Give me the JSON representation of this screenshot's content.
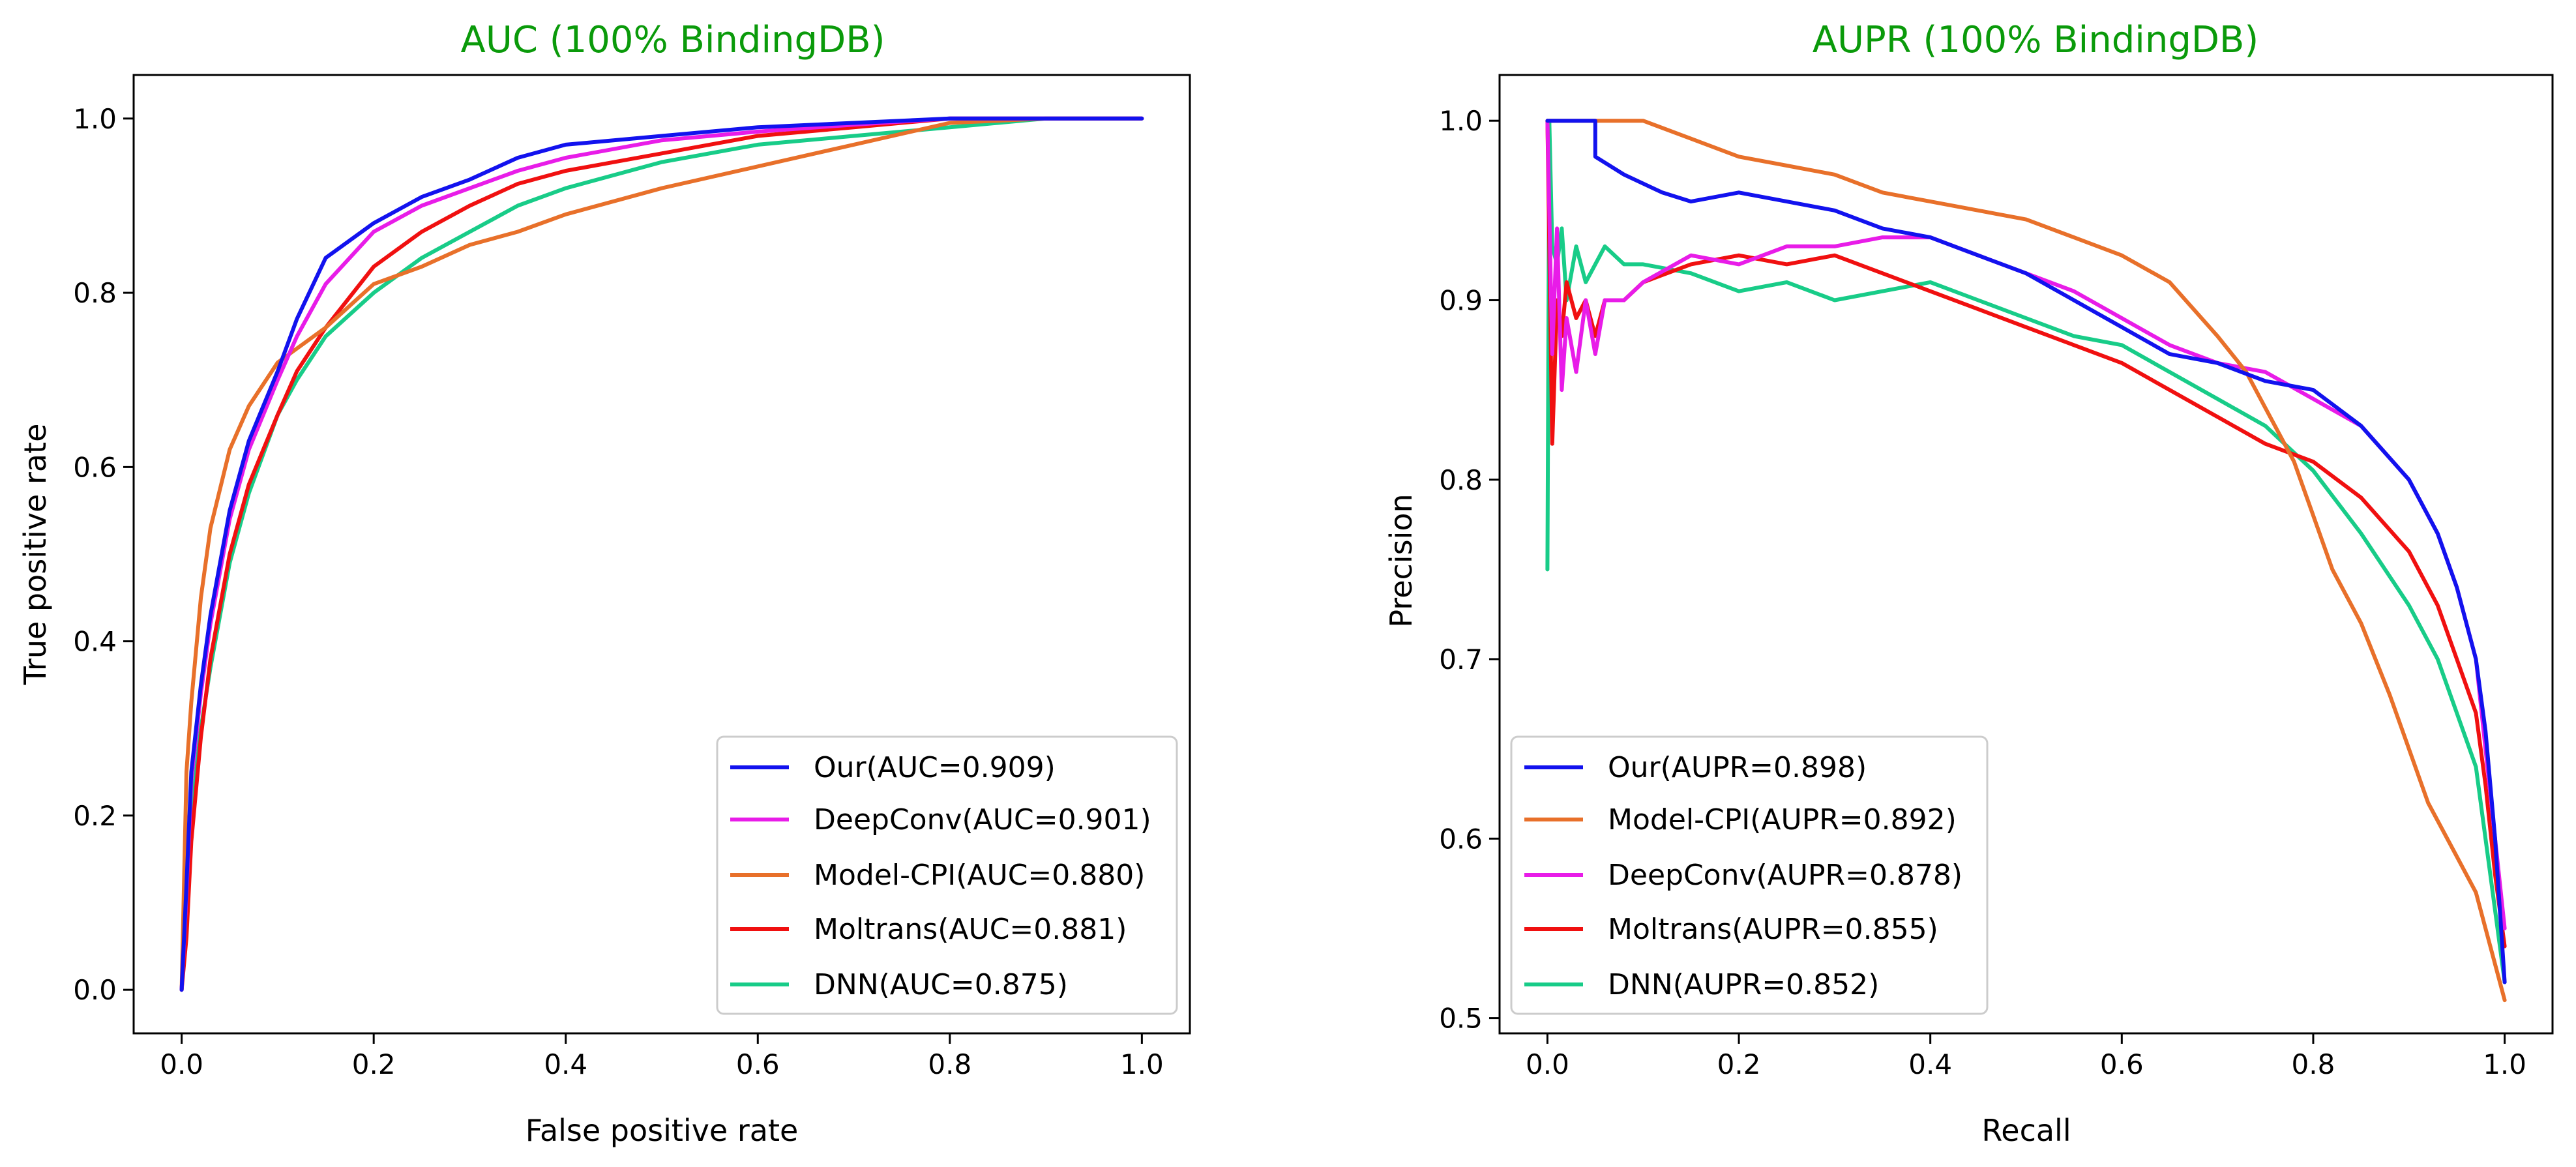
{
  "colors": {
    "title": "#0a9a0a",
    "blue": "#1212ee",
    "magenta": "#e81ce8",
    "orange": "#e8702a",
    "red": "#f01010",
    "green": "#18cc88"
  },
  "chart_data": [
    {
      "type": "line",
      "title": "AUC (100% BindingDB)",
      "xlabel": "False positive rate",
      "ylabel": "True positive rate",
      "xlim": [
        -0.05,
        1.05
      ],
      "ylim": [
        -0.05,
        1.05
      ],
      "xticks": [
        0.0,
        0.2,
        0.4,
        0.6,
        0.8,
        1.0
      ],
      "yticks": [
        0.0,
        0.2,
        0.4,
        0.6,
        0.8,
        1.0
      ],
      "xtick_labels": [
        "0.0",
        "0.2",
        "0.4",
        "0.6",
        "0.8",
        "1.0"
      ],
      "ytick_labels": [
        "0.0",
        "0.2",
        "0.4",
        "0.6",
        "0.8",
        "1.0"
      ],
      "legend_position": "lower-right",
      "series": [
        {
          "name": "Our(AUC=0.909)",
          "color": "blue",
          "x": [
            0,
            0.005,
            0.01,
            0.02,
            0.03,
            0.05,
            0.07,
            0.1,
            0.12,
            0.15,
            0.2,
            0.25,
            0.3,
            0.35,
            0.4,
            0.5,
            0.6,
            0.7,
            0.8,
            0.9,
            1.0
          ],
          "y": [
            0,
            0.12,
            0.25,
            0.35,
            0.43,
            0.55,
            0.63,
            0.71,
            0.77,
            0.84,
            0.88,
            0.91,
            0.93,
            0.955,
            0.97,
            0.98,
            0.99,
            0.995,
            1.0,
            1.0,
            1.0
          ]
        },
        {
          "name": "DeepConv(AUC=0.901)",
          "color": "magenta",
          "x": [
            0,
            0.005,
            0.01,
            0.02,
            0.03,
            0.05,
            0.07,
            0.1,
            0.12,
            0.15,
            0.2,
            0.25,
            0.3,
            0.35,
            0.4,
            0.5,
            0.6,
            0.7,
            0.8,
            0.9,
            1.0
          ],
          "y": [
            0,
            0.11,
            0.24,
            0.34,
            0.42,
            0.54,
            0.62,
            0.7,
            0.75,
            0.81,
            0.87,
            0.9,
            0.92,
            0.94,
            0.955,
            0.975,
            0.985,
            0.993,
            1.0,
            1.0,
            1.0
          ]
        },
        {
          "name": "Model-CPI(AUC=0.880)",
          "color": "orange",
          "x": [
            0,
            0.005,
            0.01,
            0.02,
            0.03,
            0.05,
            0.07,
            0.1,
            0.15,
            0.2,
            0.25,
            0.3,
            0.35,
            0.4,
            0.5,
            0.6,
            0.7,
            0.8,
            0.9,
            1.0
          ],
          "y": [
            0,
            0.25,
            0.33,
            0.45,
            0.53,
            0.62,
            0.67,
            0.72,
            0.76,
            0.81,
            0.83,
            0.855,
            0.87,
            0.89,
            0.92,
            0.945,
            0.97,
            0.995,
            1.0,
            1.0
          ]
        },
        {
          "name": "Moltrans(AUC=0.881)",
          "color": "red",
          "x": [
            0,
            0.005,
            0.01,
            0.02,
            0.03,
            0.05,
            0.07,
            0.1,
            0.12,
            0.15,
            0.2,
            0.25,
            0.3,
            0.35,
            0.4,
            0.5,
            0.6,
            0.7,
            0.8,
            0.9,
            1.0
          ],
          "y": [
            0,
            0.06,
            0.17,
            0.29,
            0.38,
            0.5,
            0.58,
            0.66,
            0.71,
            0.76,
            0.83,
            0.87,
            0.9,
            0.925,
            0.94,
            0.96,
            0.98,
            0.99,
            1.0,
            1.0,
            1.0
          ]
        },
        {
          "name": "DNN(AUC=0.875)",
          "color": "green",
          "x": [
            0,
            0.005,
            0.01,
            0.02,
            0.03,
            0.05,
            0.07,
            0.1,
            0.12,
            0.15,
            0.2,
            0.25,
            0.3,
            0.35,
            0.4,
            0.5,
            0.6,
            0.7,
            0.8,
            0.9,
            1.0
          ],
          "y": [
            0,
            0.1,
            0.2,
            0.3,
            0.37,
            0.49,
            0.57,
            0.66,
            0.7,
            0.75,
            0.8,
            0.84,
            0.87,
            0.9,
            0.92,
            0.95,
            0.97,
            0.98,
            0.99,
            1.0,
            1.0
          ]
        }
      ],
      "legend": [
        "Our(AUC=0.909)",
        "DeepConv(AUC=0.901)",
        "Model-CPI(AUC=0.880)",
        "Moltrans(AUC=0.881)",
        "DNN(AUC=0.875)"
      ]
    },
    {
      "type": "line",
      "title": "AUPR (100% BindingDB)",
      "xlabel": "Recall",
      "ylabel": "Precision",
      "xlim": [
        -0.05,
        1.05
      ],
      "ylim": [
        0.4915,
        1.0255
      ],
      "xticks": [
        0.0,
        0.2,
        0.4,
        0.6,
        0.8,
        1.0
      ],
      "yticks": [
        0.5,
        0.6,
        0.7,
        0.8,
        0.9,
        1.0
      ],
      "xtick_labels": [
        "0.0",
        "0.2",
        "0.4",
        "0.6",
        "0.8",
        "1.0"
      ],
      "ytick_labels": [
        "0.5",
        "0.6",
        "0.7",
        "0.8",
        "0.9",
        "1.0"
      ],
      "legend_position": "lower-left",
      "series": [
        {
          "name": "Our(AUPR=0.898)",
          "color": "blue",
          "x": [
            0.0,
            0.0,
            0.05,
            0.05,
            0.08,
            0.12,
            0.15,
            0.2,
            0.25,
            0.3,
            0.35,
            0.4,
            0.45,
            0.5,
            0.55,
            0.6,
            0.65,
            0.7,
            0.75,
            0.8,
            0.85,
            0.9,
            0.93,
            0.95,
            0.97,
            0.98,
            0.99,
            0.995,
            1.0
          ],
          "y": [
            1.0,
            1.0,
            1.0,
            0.98,
            0.97,
            0.96,
            0.955,
            0.96,
            0.955,
            0.95,
            0.94,
            0.935,
            0.925,
            0.915,
            0.9,
            0.885,
            0.87,
            0.865,
            0.855,
            0.85,
            0.83,
            0.8,
            0.77,
            0.74,
            0.7,
            0.66,
            0.6,
            0.56,
            0.52
          ]
        },
        {
          "name": "Model-CPI(AUPR=0.892)",
          "color": "orange",
          "x": [
            0.0,
            0.0,
            0.05,
            0.1,
            0.15,
            0.2,
            0.25,
            0.3,
            0.35,
            0.4,
            0.45,
            0.5,
            0.55,
            0.6,
            0.65,
            0.7,
            0.73,
            0.75,
            0.78,
            0.8,
            0.82,
            0.85,
            0.88,
            0.9,
            0.92,
            0.95,
            0.97,
            0.98,
            0.99,
            1.0
          ],
          "y": [
            1.0,
            1.0,
            1.0,
            1.0,
            0.99,
            0.98,
            0.975,
            0.97,
            0.96,
            0.955,
            0.95,
            0.945,
            0.935,
            0.925,
            0.91,
            0.88,
            0.86,
            0.84,
            0.81,
            0.78,
            0.75,
            0.72,
            0.68,
            0.65,
            0.62,
            0.59,
            0.57,
            0.55,
            0.53,
            0.51
          ]
        },
        {
          "name": "DeepConv(AUPR=0.878)",
          "color": "magenta",
          "x": [
            0.0,
            0.005,
            0.01,
            0.015,
            0.02,
            0.03,
            0.04,
            0.05,
            0.06,
            0.08,
            0.1,
            0.15,
            0.2,
            0.25,
            0.3,
            0.35,
            0.4,
            0.45,
            0.5,
            0.55,
            0.6,
            0.65,
            0.7,
            0.75,
            0.8,
            0.85,
            0.9,
            0.93,
            0.95,
            0.97,
            0.98,
            0.99,
            1.0
          ],
          "y": [
            1.0,
            0.87,
            0.94,
            0.85,
            0.89,
            0.86,
            0.9,
            0.87,
            0.9,
            0.9,
            0.91,
            0.925,
            0.92,
            0.93,
            0.93,
            0.935,
            0.935,
            0.925,
            0.915,
            0.905,
            0.89,
            0.875,
            0.865,
            0.86,
            0.845,
            0.83,
            0.8,
            0.77,
            0.74,
            0.7,
            0.65,
            0.6,
            0.55
          ]
        },
        {
          "name": "Moltrans(AUPR=0.855)",
          "color": "red",
          "x": [
            0.0,
            0.005,
            0.01,
            0.015,
            0.02,
            0.03,
            0.04,
            0.05,
            0.06,
            0.08,
            0.1,
            0.15,
            0.2,
            0.25,
            0.3,
            0.35,
            0.4,
            0.45,
            0.5,
            0.55,
            0.6,
            0.65,
            0.7,
            0.75,
            0.8,
            0.85,
            0.9,
            0.93,
            0.95,
            0.97,
            0.98,
            0.99,
            1.0
          ],
          "y": [
            1.0,
            0.82,
            0.9,
            0.88,
            0.91,
            0.89,
            0.9,
            0.88,
            0.9,
            0.9,
            0.91,
            0.92,
            0.925,
            0.92,
            0.925,
            0.915,
            0.905,
            0.895,
            0.885,
            0.875,
            0.865,
            0.85,
            0.835,
            0.82,
            0.81,
            0.79,
            0.76,
            0.73,
            0.7,
            0.67,
            0.63,
            0.58,
            0.54
          ]
        },
        {
          "name": "DNN(AUPR=0.852)",
          "color": "green",
          "x": [
            0.0,
            0.002,
            0.005,
            0.01,
            0.015,
            0.02,
            0.03,
            0.04,
            0.05,
            0.06,
            0.08,
            0.1,
            0.15,
            0.2,
            0.25,
            0.3,
            0.35,
            0.4,
            0.45,
            0.5,
            0.55,
            0.6,
            0.65,
            0.7,
            0.75,
            0.8,
            0.85,
            0.9,
            0.93,
            0.95,
            0.97,
            0.98,
            0.99,
            1.0
          ],
          "y": [
            0.75,
            1.0,
            0.93,
            0.92,
            0.94,
            0.9,
            0.93,
            0.91,
            0.92,
            0.93,
            0.92,
            0.92,
            0.915,
            0.905,
            0.91,
            0.9,
            0.905,
            0.91,
            0.9,
            0.89,
            0.88,
            0.875,
            0.86,
            0.845,
            0.83,
            0.805,
            0.77,
            0.73,
            0.7,
            0.67,
            0.64,
            0.6,
            0.56,
            0.52
          ]
        }
      ],
      "legend": [
        "Our(AUPR=0.898)",
        "Model-CPI(AUPR=0.892)",
        "DeepConv(AUPR=0.878)",
        "Moltrans(AUPR=0.855)",
        "DNN(AUPR=0.852)"
      ]
    }
  ]
}
